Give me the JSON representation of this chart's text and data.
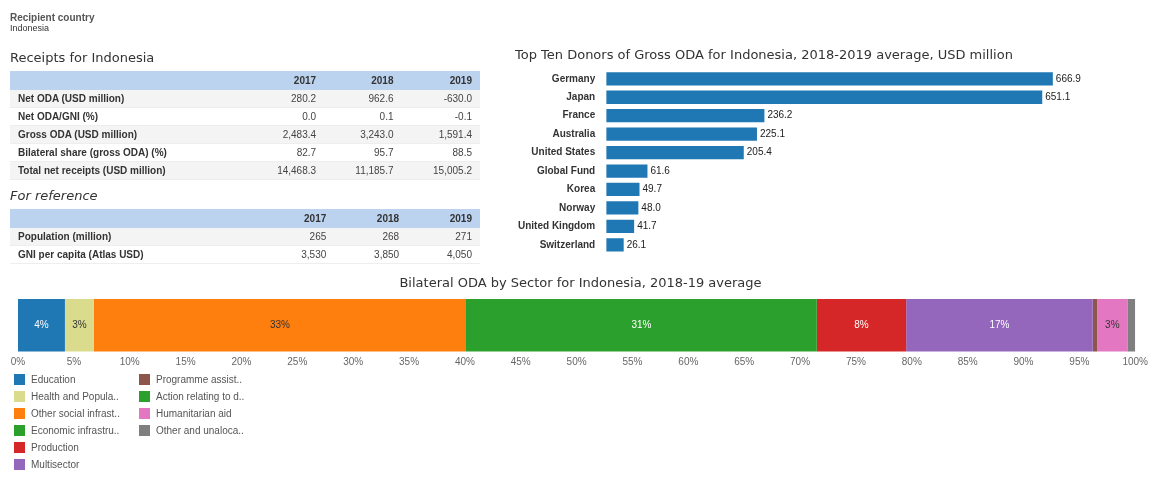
{
  "chart_data": [
    {
      "type": "other",
      "title": "Recipient country",
      "annotations": [
        "Indonesia"
      ]
    },
    {
      "type": "other",
      "title": "Receipts for Indonesia",
      "categories": [
        "2017",
        "2018",
        "2019"
      ],
      "y_categories": [
        "Net ODA (USD million)",
        "Net ODA/GNI (%)",
        "Gross ODA (USD million)",
        "Bilateral share (gross ODA) (%)",
        "Total net receipts (USD million)"
      ],
      "cell_labels": [
        [
          "280.2",
          "962.6",
          "-630.0"
        ],
        [
          "0.0",
          "0.1",
          "-0.1"
        ],
        [
          "2,483.4",
          "3,243.0",
          "1,591.4"
        ],
        [
          "82.7",
          "95.7",
          "88.5"
        ],
        [
          "14,468.3",
          "11,185.7",
          "15,005.2"
        ]
      ]
    },
    {
      "type": "other",
      "title": "For reference",
      "categories": [
        "2017",
        "2018",
        "2019"
      ],
      "y_categories": [
        "Population (million)",
        "GNI per capita (Atlas USD)"
      ],
      "cell_labels": [
        [
          "265",
          "268",
          "271"
        ],
        [
          "3,530",
          "3,850",
          "4,050"
        ]
      ]
    },
    {
      "type": "bar",
      "orientation": "horizontal",
      "title": "Top Ten Donors of Gross ODA for Indonesia, 2018-2019 average, USD million",
      "categories": [
        "Germany",
        "Japan",
        "France",
        "Australia",
        "United States",
        "Global Fund",
        "Korea",
        "Norway",
        "United Kingdom",
        "Switzerland"
      ],
      "values": [
        666.9,
        651.1,
        236.2,
        225.1,
        205.4,
        61.6,
        49.7,
        48.0,
        41.7,
        26.1
      ],
      "color": "#1f77b4",
      "value_labels": [
        "666.9",
        "651.1",
        "236.2",
        "225.1",
        "205.4",
        "61.6",
        "49.7",
        "48.0",
        "41.7",
        "26.1"
      ],
      "tick_labels": "y",
      "grid": false
    },
    {
      "type": "bar",
      "orientation": "horizontal",
      "stacked": true,
      "title": "Bilateral ODA by Sector for Indonesia, 2018-19 average",
      "categories": [
        null
      ],
      "xlim": [
        0,
        100
      ],
      "xticks": [
        {
          "value": 0,
          "label": "0%"
        },
        {
          "value": 5,
          "label": "5%"
        },
        {
          "value": 10,
          "label": "10%"
        },
        {
          "value": 15,
          "label": "15%"
        },
        {
          "value": 20,
          "label": "20%"
        },
        {
          "value": 25,
          "label": "25%"
        },
        {
          "value": 30,
          "label": "30%"
        },
        {
          "value": 35,
          "label": "35%"
        },
        {
          "value": 40,
          "label": "40%"
        },
        {
          "value": 45,
          "label": "45%"
        },
        {
          "value": 50,
          "label": "50%"
        },
        {
          "value": 55,
          "label": "55%"
        },
        {
          "value": 60,
          "label": "60%"
        },
        {
          "value": 65,
          "label": "65%"
        },
        {
          "value": 70,
          "label": "70%"
        },
        {
          "value": 75,
          "label": "75%"
        },
        {
          "value": 80,
          "label": "80%"
        },
        {
          "value": 85,
          "label": "85%"
        },
        {
          "value": 90,
          "label": "90%"
        },
        {
          "value": 95,
          "label": "95%"
        },
        {
          "value": 100,
          "label": "100%"
        }
      ],
      "tick_labels": "x",
      "grid": false,
      "legend": "bottom left",
      "series": [
        {
          "name": "Education",
          "color": "#1f77b4",
          "values": [
            4.2
          ],
          "value_labels": [
            "4%"
          ]
        },
        {
          "name": "Health and Popula..",
          "color": "#dbdb8d",
          "values": [
            2.6
          ],
          "value_labels": [
            "3%"
          ]
        },
        {
          "name": "Other social infrast..",
          "color": "#ff7f0e",
          "values": [
            33.3
          ],
          "value_labels": [
            "33%"
          ]
        },
        {
          "name": "Economic infrastru..",
          "color": "#2ca02c",
          "values": [
            31.4
          ],
          "value_labels": [
            "31%"
          ]
        },
        {
          "name": "Production",
          "color": "#d62728",
          "values": [
            8.0
          ],
          "value_labels": [
            "8%"
          ]
        },
        {
          "name": "Multisector",
          "color": "#9467bd",
          "values": [
            16.7
          ],
          "value_labels": [
            "17%"
          ]
        },
        {
          "name": "Programme assist..",
          "color": "#8c564b",
          "values": [
            0.4
          ],
          "value_labels": [
            null
          ]
        },
        {
          "name": "Action relating to d..",
          "color": "#2ca02c",
          "values": [
            null
          ],
          "value_labels": [
            null
          ]
        },
        {
          "name": "Humanitarian aid",
          "color": "#e377c2",
          "values": [
            2.7
          ],
          "value_labels": [
            "3%"
          ]
        },
        {
          "name": "Other and unaloca..",
          "color": "#7f7f7f",
          "values": [
            0.7
          ],
          "value_labels": [
            null
          ]
        }
      ]
    }
  ]
}
